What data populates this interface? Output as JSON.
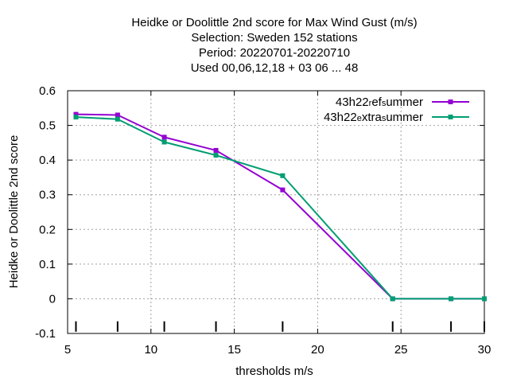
{
  "chart_data": {
    "type": "line",
    "title_lines": [
      "Heidke or Doolittle 2nd score  for Max Wind Gust (m/s)",
      "Selection: Sweden    152 stations",
      "Period: 20220701-20220710",
      "Used  00,06,12,18  + 03 06 ... 48"
    ],
    "xlabel": "thresholds m/s",
    "ylabel": "Heidke or Doolittle 2nd score",
    "xlim": [
      5,
      30
    ],
    "ylim": [
      -0.1,
      0.6
    ],
    "xticks": [
      5,
      10,
      15,
      20,
      25,
      30
    ],
    "xtick_labels": [
      "5",
      "10",
      "15",
      "20",
      "25",
      "30"
    ],
    "yticks": [
      -0.1,
      0,
      0.1,
      0.2,
      0.3,
      0.4,
      0.5,
      0.6
    ],
    "ytick_labels": [
      "-0.1",
      "0",
      "0.1",
      "0.2",
      "0.3",
      "0.4",
      "0.5",
      "0.6"
    ],
    "threshold_markers": [
      5.5,
      8,
      10.8,
      13.9,
      17.9,
      24.5,
      28,
      30
    ],
    "grid": true,
    "legend_position": "top-right",
    "series": [
      {
        "name": "43h22_ref_summer",
        "legend_parts": [
          {
            "text": "43h22",
            "sub": false
          },
          {
            "text": "r",
            "sub": true
          },
          {
            "text": "ef",
            "sub": false
          },
          {
            "text": "s",
            "sub": true
          },
          {
            "text": "ummer",
            "sub": false
          }
        ],
        "color": "#9400d3",
        "x": [
          5.5,
          8,
          10.8,
          13.9,
          17.9,
          24.5,
          28,
          30
        ],
        "y": [
          0.532,
          0.53,
          0.466,
          0.428,
          0.314,
          0.0,
          0.0,
          0.0
        ]
      },
      {
        "name": "43h22_extra_summer",
        "legend_parts": [
          {
            "text": "43h22",
            "sub": false
          },
          {
            "text": "e",
            "sub": true
          },
          {
            "text": "xtra",
            "sub": false
          },
          {
            "text": "s",
            "sub": true
          },
          {
            "text": "ummer",
            "sub": false
          }
        ],
        "color": "#009e73",
        "x": [
          5.5,
          8,
          10.8,
          13.9,
          17.9,
          24.5,
          28,
          30
        ],
        "y": [
          0.524,
          0.518,
          0.452,
          0.414,
          0.355,
          0.0,
          0.0,
          0.0
        ]
      }
    ]
  }
}
